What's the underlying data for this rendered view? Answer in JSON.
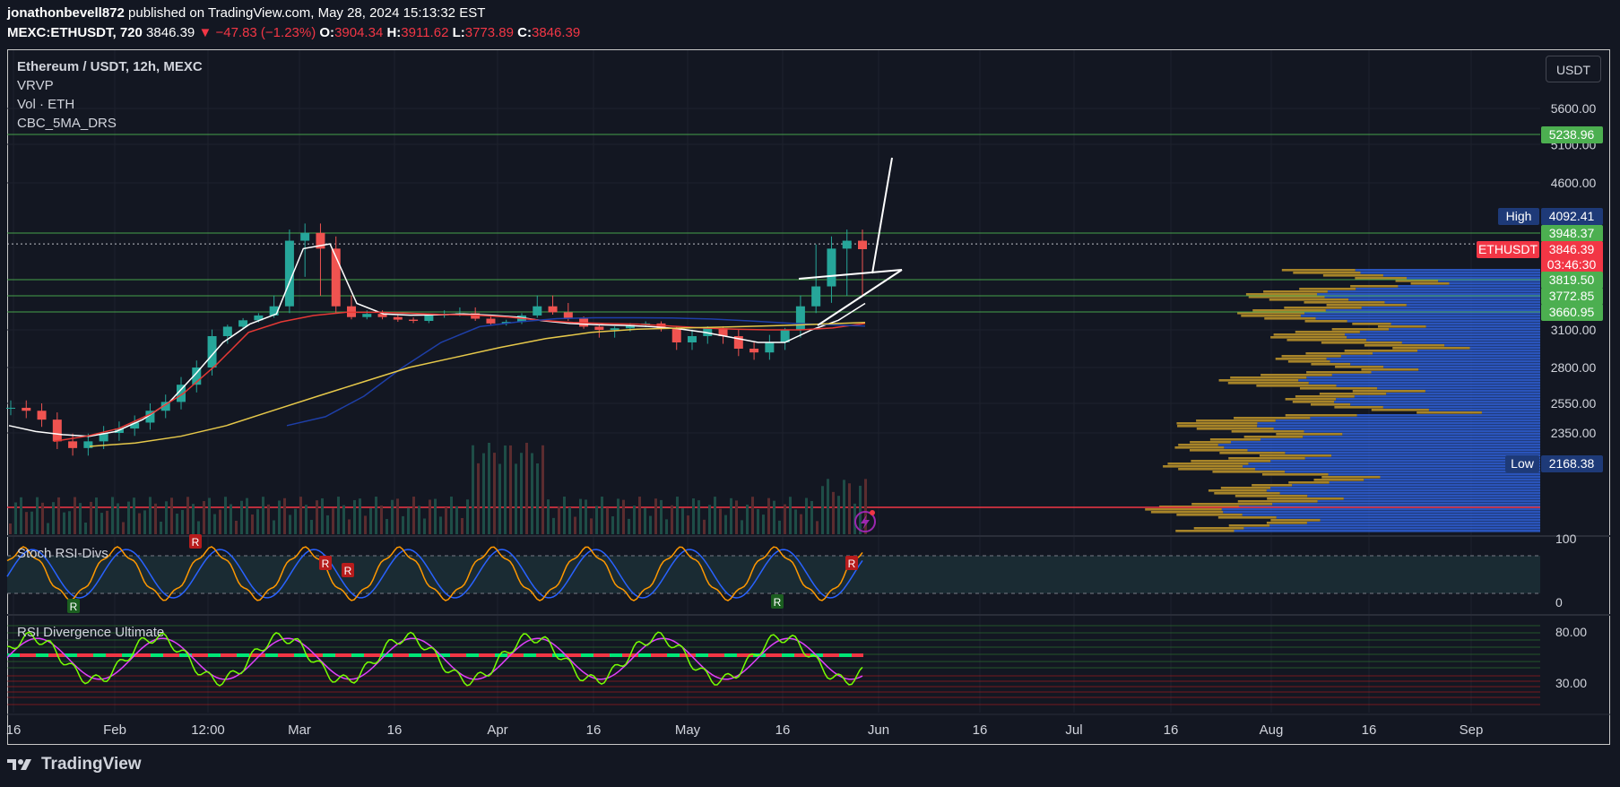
{
  "header": {
    "author": "jonathonbevell872",
    "published_text": "published on TradingView.com, May 28, 2024 15:13:32 EST",
    "symbol_line": "MEXC:ETHUSDT, 720",
    "last": "3846.39",
    "change": "▼ −47.83 (−1.23%)",
    "o_label": "O:",
    "o": "3904.34",
    "h_label": "H:",
    "h": "3911.62",
    "l_label": "L:",
    "l": "3773.89",
    "c_label": "C:",
    "c": "3846.39"
  },
  "legend": {
    "title": "Ethereum / USDT, 12h, MEXC",
    "items": [
      "VRVP",
      "Vol · ETH",
      "CBC_5MA_DRS"
    ]
  },
  "currency_button": "USDT",
  "panes": {
    "stoch_title": "Stoch RSI-Divs",
    "rsi_title": "RSI Divergence Ultimate"
  },
  "footer": {
    "brand": "TradingView"
  },
  "colors": {
    "up": "#26a69a",
    "down": "#ef5350",
    "sma_white": "#ffffff",
    "sma_red": "#e53935",
    "sma_blue": "#1e3fa8",
    "sma_yellow": "#e6c84a",
    "vp_gold": "#b8902a",
    "vp_blue": "#2f5fd6",
    "label_green": "#4caf50",
    "label_red": "#f23645",
    "label_navy": "#1e3a78"
  },
  "chart_data": {
    "type": "candlestick",
    "symbol": "ETHUSDT",
    "timeframe": "12h",
    "exchange": "MEXC",
    "x_tick_labels": [
      "16",
      "Feb",
      "12:00",
      "Mar",
      "16",
      "Apr",
      "16",
      "May",
      "16",
      "Jun",
      "16",
      "Jul",
      "16",
      "Aug",
      "16",
      "Sep"
    ],
    "price_axis_ticks": [
      5600,
      5100,
      4600,
      3100,
      2800,
      2550,
      2350
    ],
    "price_axis_tick_labels": [
      "5600.00",
      "5100.00",
      "4600.00",
      "3100.00",
      "2800.00",
      "2550.00",
      "2350.00"
    ],
    "price_labels": [
      {
        "text": "5238.96",
        "value": 5238.96,
        "kind": "green"
      },
      {
        "tag": "High",
        "text": "4092.41",
        "value": 4092.41,
        "kind": "navy"
      },
      {
        "text": "3948.37",
        "value": 3948.37,
        "kind": "green"
      },
      {
        "tag": "ETHUSDT",
        "text": "3846.39",
        "value": 3846.39,
        "kind": "red",
        "countdown": "03:46:30"
      },
      {
        "text": "3819.50",
        "value": 3819.5,
        "kind": "green"
      },
      {
        "text": "3772.85",
        "value": 3772.85,
        "kind": "green"
      },
      {
        "text": "3660.95",
        "value": 3660.95,
        "kind": "green"
      },
      {
        "tag": "Low",
        "text": "2168.38",
        "value": 2168.38,
        "kind": "navy"
      }
    ],
    "horizontal_lines": [
      5238.96,
      3948.37,
      3880,
      3819.5,
      3772.85,
      3660.95
    ],
    "candles_close_approx": [
      2520,
      2500,
      2440,
      2300,
      2260,
      2300,
      2350,
      2380,
      2420,
      2500,
      2560,
      2680,
      2800,
      3050,
      3200,
      3400,
      3550,
      3700,
      3900,
      3950,
      3850,
      3700,
      3500,
      3600,
      3500,
      3420,
      3380,
      3550,
      3600,
      3620,
      3450,
      3300,
      3350,
      3550,
      3700,
      3650,
      3450,
      3200,
      3100,
      3150,
      3250,
      3300,
      3150,
      3000,
      3050,
      3150,
      3050,
      2950,
      2920,
      3000,
      3100,
      3700,
      3800,
      3850,
      3900,
      3846.39
    ],
    "moving_averages": [
      {
        "name": "white",
        "values": [
          2400,
          2360,
          2340,
          2330,
          2360,
          2440,
          2560,
          2760,
          3000,
          3280,
          3600,
          3850,
          3880,
          3720,
          3600,
          3560,
          3570,
          3600,
          3560,
          3500,
          3380,
          3300,
          3260,
          3240,
          3200,
          3140,
          3080,
          3040,
          3000,
          3000,
          3100,
          3400,
          3720
        ]
      },
      {
        "name": "red",
        "values": [
          2300,
          2330,
          2380,
          2480,
          2620,
          2820,
          3080,
          3350,
          3550,
          3650,
          3650,
          3620,
          3580,
          3560,
          3500,
          3400,
          3330,
          3300,
          3280,
          3220,
          3160,
          3120,
          3100,
          3100,
          3160,
          3300
        ]
      },
      {
        "name": "blue",
        "values": [
          2400,
          2460,
          2600,
          2800,
          3000,
          3200,
          3350,
          3450,
          3480,
          3480,
          3470,
          3440,
          3380,
          3310,
          3260,
          3220
        ]
      },
      {
        "name": "yellow",
        "values": [
          2270,
          2290,
          2330,
          2400,
          2500,
          2600,
          2700,
          2800,
          2880,
          2960,
          3030,
          3080,
          3120,
          3160,
          3190,
          3230,
          3280,
          3330
        ]
      }
    ],
    "volume_profile": {
      "high": 4092.41,
      "low": 2168.38
    },
    "stoch_rsi": {
      "ticks": [
        100,
        0
      ],
      "upper_band": 80,
      "lower_band": 20,
      "labels": [
        "R",
        "R",
        "R",
        "R",
        "R",
        "R"
      ]
    },
    "rsi_divergence": {
      "ticks": [
        80.0,
        30.0
      ],
      "tick_labels": [
        "80.00",
        "30.00"
      ]
    }
  }
}
